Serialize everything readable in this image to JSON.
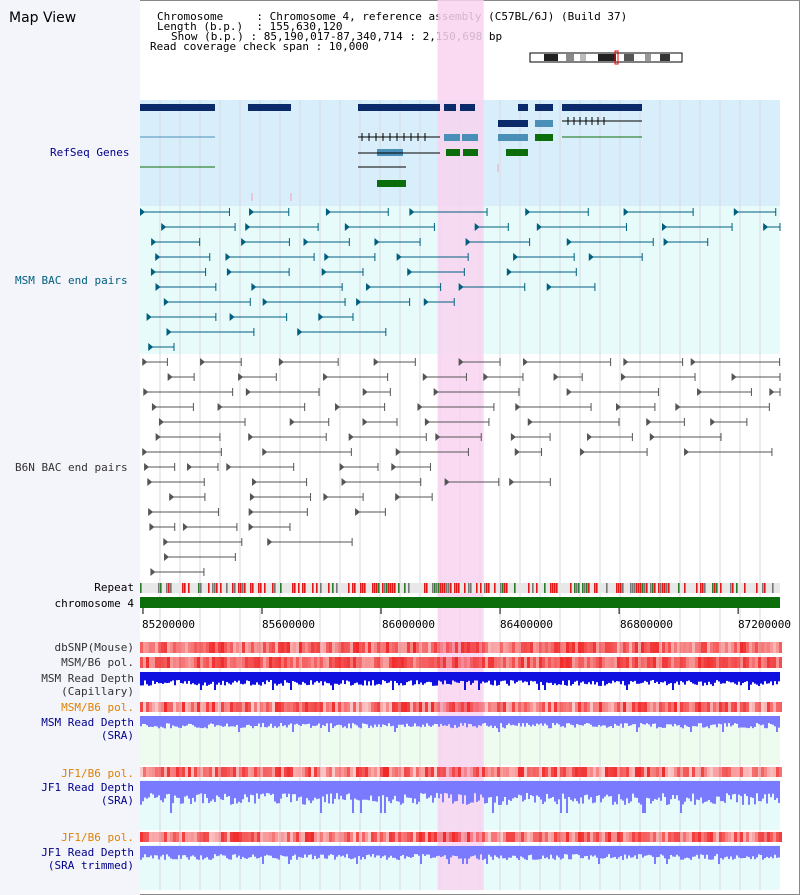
{
  "app": {
    "title": "Map View"
  },
  "header": {
    "rows": [
      {
        "label": "Chromosome",
        "value": "Chromosome 4, reference assembly (C57BL/6J) (Build 37)"
      },
      {
        "label": "Length (b.p.)",
        "value": "155,630,120"
      },
      {
        "label": "Show (b.p.)",
        "value": "85,190,017-87,340,714 : 2,150,698 bp"
      },
      {
        "label": "Read coverage check span",
        "value": "10,000"
      }
    ]
  },
  "view": {
    "start": 85190017,
    "end": 87340714,
    "highlight_start": 86190000,
    "highlight_end": 86345000
  },
  "tracks": {
    "refseq": {
      "label": "RefSeq Genes",
      "color": "#00008b"
    },
    "msm_bac": {
      "label": "MSM BAC end pairs",
      "color": "#005f7f"
    },
    "b6n_bac": {
      "label": "B6N BAC end pairs",
      "color": "#333333"
    },
    "repeat": {
      "label": "Repeat"
    },
    "chromosome": {
      "label": "chromosome 4"
    },
    "dbsnp": {
      "label": "dbSNP(Mouse)"
    },
    "msm_b6_pol": {
      "label": "MSM/B6 pol."
    },
    "msm_depth_cap": {
      "label": "MSM Read Depth",
      "sub": "(Capillary)"
    },
    "msm_b6_pol_sra": {
      "label": "MSM/B6 pol.",
      "color": "#e08000"
    },
    "msm_depth_sra": {
      "label": "MSM Read Depth",
      "sub": "(SRA)",
      "color": "#00008b"
    },
    "jf1_b6_pol": {
      "label": "JF1/B6 pol.",
      "color": "#e08000"
    },
    "jf1_depth_sra": {
      "label": "JF1 Read Depth",
      "sub": "(SRA)",
      "color": "#00008b"
    },
    "jf1_b6_pol_trim": {
      "label": "JF1/B6 pol.",
      "color": "#e08000"
    },
    "jf1_depth_trim": {
      "label": "JF1 Read Depth",
      "sub": "(SRA trimmed)",
      "color": "#00008b"
    }
  },
  "axis": {
    "ticks": [
      "85200000",
      "85600000",
      "86000000",
      "86400000",
      "86800000",
      "87200000"
    ],
    "tick_values": [
      85200000,
      85600000,
      86000000,
      86400000,
      86800000,
      87200000
    ]
  },
  "colors": {
    "gene_dark": "#0a2a6a",
    "gene_light": "#4a8fb8",
    "gene_green": "#0b6e0b",
    "highlight": "#f8d4f0",
    "depth_blue": "#1010e0",
    "depth_light": "#7a7aff",
    "pol_red": "#ff4040",
    "chrom_green": "#0b6e0b",
    "msm_line": "#005f7f",
    "b6n_line": "#555555"
  }
}
